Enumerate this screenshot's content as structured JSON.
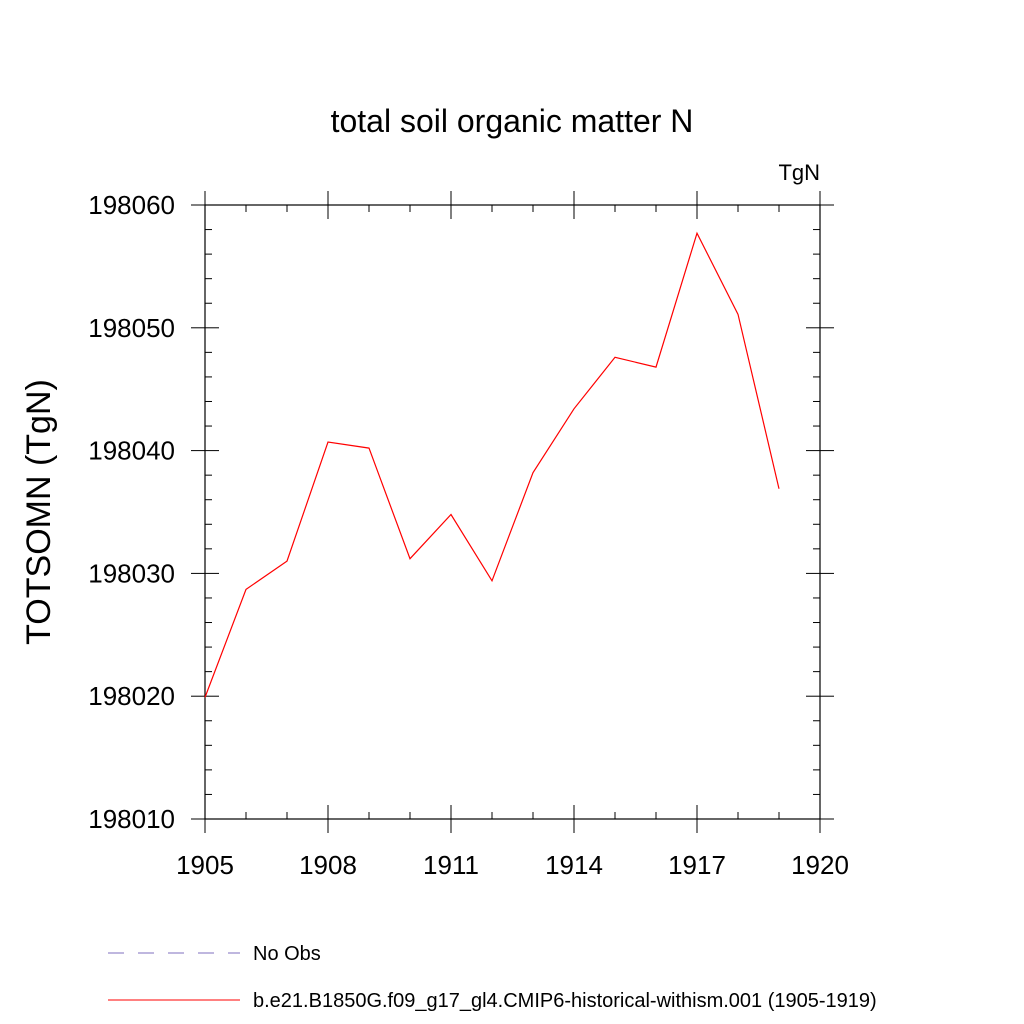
{
  "chart_data": {
    "type": "line",
    "title": "total soil organic matter N",
    "units_label": "TgN",
    "ylabel": "TOTSOMN  (TgN)",
    "xlabel": "",
    "xlim": [
      1905,
      1920
    ],
    "ylim": [
      198010,
      198060
    ],
    "x_ticks": [
      1905,
      1908,
      1911,
      1914,
      1917,
      1920
    ],
    "y_ticks": [
      198010,
      198020,
      198030,
      198040,
      198050,
      198060
    ],
    "grid": false,
    "legend_position": "bottom",
    "series": [
      {
        "name": "No Obs",
        "color": "#7f6fbf",
        "style": "dashed",
        "x": [],
        "values": []
      },
      {
        "name": "b.e21.B1850G.f09_g17_gl4.CMIP6-historical-withism.001 (1905-1919)",
        "color": "#ff0000",
        "style": "solid",
        "x": [
          1905,
          1906,
          1907,
          1908,
          1909,
          1910,
          1911,
          1912,
          1913,
          1914,
          1915,
          1916,
          1917,
          1918,
          1919
        ],
        "values": [
          198019.9,
          198028.7,
          198031.0,
          198040.7,
          198040.2,
          198031.2,
          198034.8,
          198029.4,
          198038.2,
          198043.4,
          198047.6,
          198046.8,
          198057.7,
          198051.1,
          198036.9
        ]
      }
    ]
  }
}
